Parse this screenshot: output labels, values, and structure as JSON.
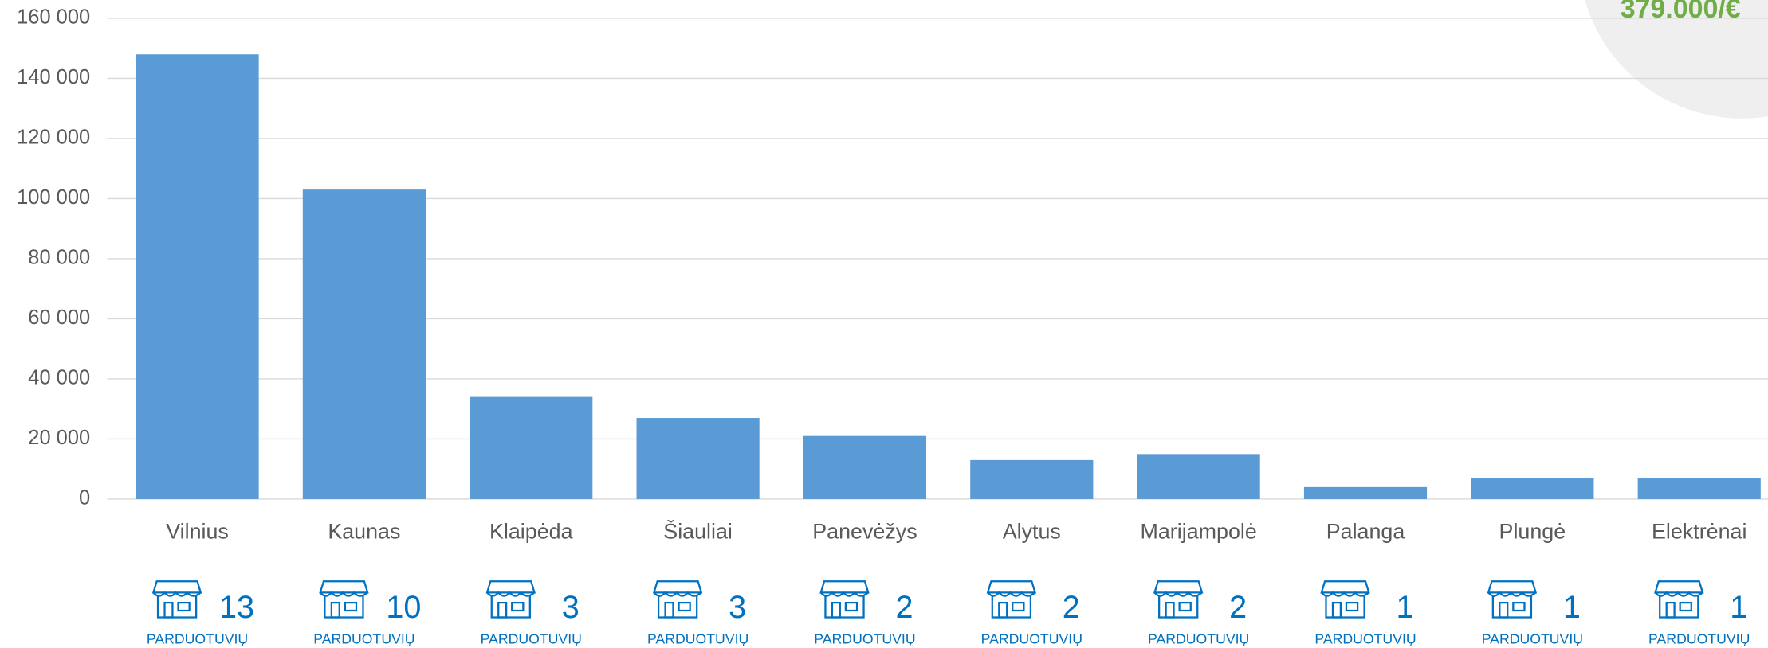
{
  "chart_data": {
    "type": "bar",
    "categories": [
      "Vilnius",
      "Kaunas",
      "Klaipėda",
      "Šiauliai",
      "Panevėžys",
      "Alytus",
      "Marijampolė",
      "Palanga",
      "Plungė",
      "Elektrėnai"
    ],
    "values": [
      148000,
      103000,
      34000,
      27000,
      21000,
      13000,
      15000,
      4000,
      7000,
      7000
    ],
    "color": "#5b9bd5",
    "ylim": [
      0,
      160000
    ],
    "yticks": [
      0,
      {
        "value": 20000,
        "label": "20 000"
      },
      {
        "value": 40000,
        "label": "40 000"
      },
      {
        "value": 60000,
        "label": "60 000"
      },
      {
        "value": 80000,
        "label": "80 000"
      },
      {
        "value": 100000,
        "label": "100 000"
      },
      {
        "value": 120000,
        "label": "120 000"
      },
      {
        "value": 140000,
        "label": "140 000"
      },
      {
        "value": 160000,
        "label": "160 000"
      }
    ],
    "grid": true,
    "store_counts": [
      13,
      10,
      3,
      3,
      2,
      2,
      2,
      1,
      1,
      1
    ],
    "store_label": "PARDUOTUVIŲ",
    "badge": "379.000/€"
  }
}
